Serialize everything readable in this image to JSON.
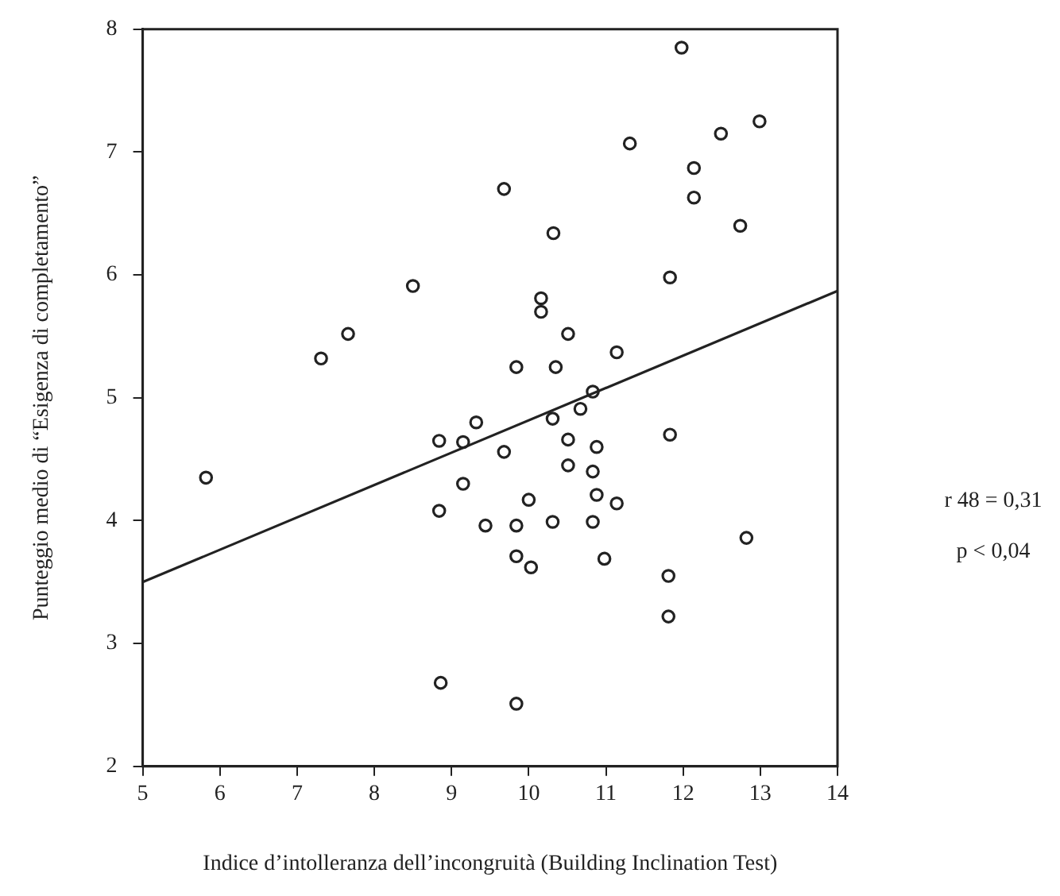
{
  "chart_data": {
    "type": "scatter",
    "xlabel": "Indice d’intolleranza dell’incongruità (Building Inclination Test)",
    "ylabel": "Punteggio medio di “Esigenza di completamento”",
    "xlim": [
      5,
      14
    ],
    "xticks": [
      5,
      6,
      7,
      8,
      9,
      {
        "value": 10,
        "label": "10"
      },
      11,
      12,
      13,
      14
    ],
    "ylim": [
      2,
      8
    ],
    "yticks": [
      2,
      3,
      4,
      5,
      6,
      7,
      8
    ],
    "marker": "circle",
    "series": [
      {
        "type": "scatter",
        "color": "#222222",
        "x": [
          9.68,
          10.32,
          8.5,
          10.16,
          10.16,
          7.66,
          7.31,
          9.84,
          10.35,
          9.32,
          10.31,
          8.84,
          9.15,
          9.68,
          11.98,
          12.99,
          12.49,
          11.31,
          12.14,
          12.14,
          12.74,
          11.83,
          10.51,
          11.14,
          10.83,
          10.67,
          10.51,
          10.88,
          11.83,
          5.82,
          9.15,
          10.0,
          8.84,
          9.44,
          9.84,
          10.31,
          9.84,
          10.03,
          8.86,
          9.84,
          10.51,
          10.83,
          10.88,
          11.14,
          10.83,
          10.98,
          12.82,
          11.81,
          11.81
        ],
        "values": [
          6.7,
          6.34,
          5.91,
          5.81,
          5.7,
          5.52,
          5.32,
          5.25,
          5.25,
          4.8,
          4.83,
          4.65,
          4.64,
          4.56,
          7.85,
          7.25,
          7.15,
          7.07,
          6.87,
          6.63,
          6.4,
          5.98,
          5.52,
          5.37,
          5.05,
          4.91,
          4.66,
          4.6,
          4.7,
          4.35,
          4.3,
          4.17,
          4.08,
          3.96,
          3.96,
          3.99,
          3.71,
          3.62,
          2.68,
          2.51,
          4.45,
          4.4,
          4.21,
          4.14,
          3.99,
          3.69,
          3.86,
          3.55,
          3.22
        ]
      },
      {
        "type": "line",
        "color": "#222222",
        "marker": "none",
        "line_style": "solid",
        "x": [
          5,
          14
        ],
        "values": [
          3.5,
          5.87
        ]
      }
    ],
    "annotations": [
      "r 48 = 0,31",
      "p < 0,04"
    ]
  }
}
